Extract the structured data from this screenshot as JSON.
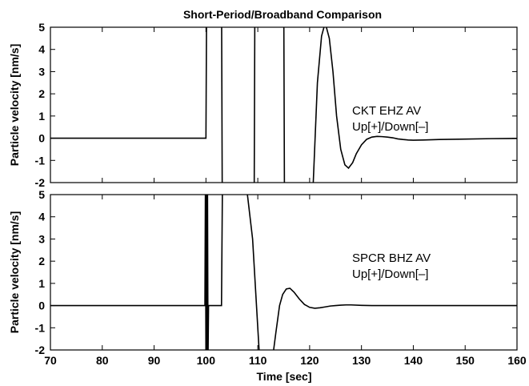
{
  "chart_data": {
    "type": "line",
    "title": "Short-Period/Broadband Comparison",
    "xlabel": "Time [sec]",
    "xlim": [
      70,
      160
    ],
    "xticks": [
      70,
      80,
      90,
      100,
      110,
      120,
      130,
      140,
      150,
      160
    ],
    "grid": false,
    "panels": [
      {
        "ylabel": "Particle velocity [nm/s]",
        "ylim": [
          -2,
          5
        ],
        "yticks": [
          -2,
          -1,
          0,
          1,
          2,
          3,
          4,
          5
        ],
        "annotation": [
          "CKT EHZ AV",
          "Up[+]/Down[–]"
        ],
        "series": [
          {
            "x": [
              70,
              99.9,
              100.0,
              100.15,
              103.0,
              103.15,
              109.3,
              109.45,
              115.0,
              115.15,
              120.5,
              120.7,
              121.5,
              122.3,
              123.0,
              123.8,
              124.5,
              125.2,
              126.0,
              126.8,
              127.5,
              128.3,
              129.0,
              130.0,
              131.0,
              132.0,
              133.0,
              134.0,
              135.0,
              136.0,
              137.0,
              138.0,
              139.0,
              140.0,
              142.0,
              145.0,
              150.0,
              155.0,
              160.0
            ],
            "y": [
              0,
              0,
              0,
              7,
              7,
              -3,
              -3,
              7,
              7,
              -3,
              -3,
              -2,
              2.5,
              4.6,
              5.2,
              4.5,
              3.0,
              1.0,
              -0.5,
              -1.2,
              -1.35,
              -1.1,
              -0.7,
              -0.3,
              -0.05,
              0.05,
              0.08,
              0.07,
              0.05,
              0.02,
              -0.03,
              -0.06,
              -0.08,
              -0.09,
              -0.08,
              -0.06,
              -0.04,
              -0.02,
              -0.01
            ]
          }
        ]
      },
      {
        "ylabel": "Particle velocity [nm/s]",
        "ylim": [
          -2,
          5
        ],
        "yticks": [
          -2,
          -1,
          0,
          1,
          2,
          3,
          4,
          5
        ],
        "annotation": [
          "SPCR BHZ AV",
          "Up[+]/Down[–]"
        ],
        "series": [
          {
            "x": [
              70,
              99.8,
              99.9,
              100.0,
              100.1,
              100.2,
              100.3,
              100.4,
              100.5,
              103.0,
              103.2,
              107.8,
              108.0,
              109.0,
              110.5,
              112.5,
              113.5,
              114.2,
              114.8,
              115.5,
              116.2,
              117.0,
              118.0,
              119.0,
              120.0,
              121.0,
              122.0,
              123.0,
              124.0,
              125.0,
              126.0,
              127.0,
              128.0,
              130.0,
              132.0,
              135.0,
              140.0,
              150.0,
              160.0
            ],
            "y": [
              0,
              0,
              5.5,
              -2.5,
              5.5,
              -2.5,
              5.5,
              -2.5,
              0,
              0,
              6,
              6,
              5,
              3,
              -3,
              -3,
              -1.2,
              0.0,
              0.5,
              0.75,
              0.78,
              0.6,
              0.3,
              0.05,
              -0.08,
              -0.12,
              -0.1,
              -0.06,
              -0.02,
              0.0,
              0.02,
              0.03,
              0.03,
              0.01,
              0.0,
              0.0,
              0.0,
              0.0,
              0.0
            ]
          }
        ]
      }
    ]
  }
}
